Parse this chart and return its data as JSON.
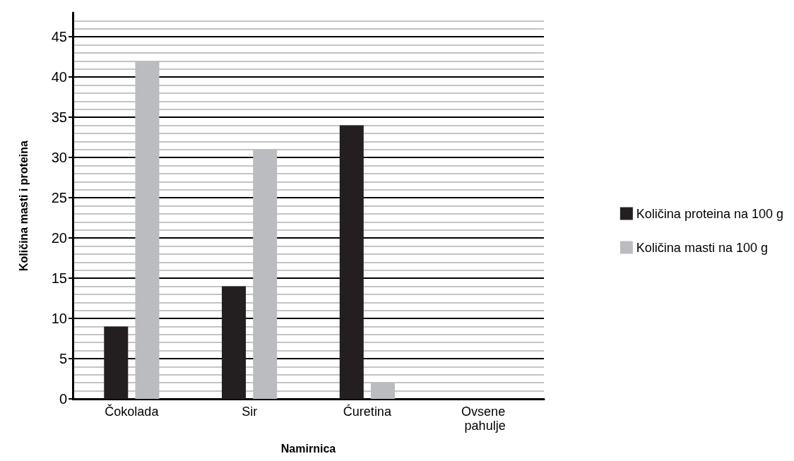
{
  "chart_data": {
    "type": "bar",
    "xlabel": "Namirnica",
    "ylabel": "Količina masti i proteina",
    "categories": [
      "Čokolada",
      "Sir",
      "Ćuretina",
      "Ovsene pahulje"
    ],
    "series": [
      {
        "name": "Količina proteina na 100 g",
        "color": "#231f20",
        "values": [
          9,
          14,
          34,
          0
        ]
      },
      {
        "name": "Količina masti na 100 g",
        "color": "#bbbcbf",
        "values": [
          42,
          31,
          2,
          0
        ]
      }
    ],
    "ylim": [
      0,
      48
    ],
    "yticks": [
      0,
      5,
      10,
      15,
      20,
      25,
      30,
      35,
      40,
      45
    ],
    "grid": "y",
    "legend": "right"
  }
}
